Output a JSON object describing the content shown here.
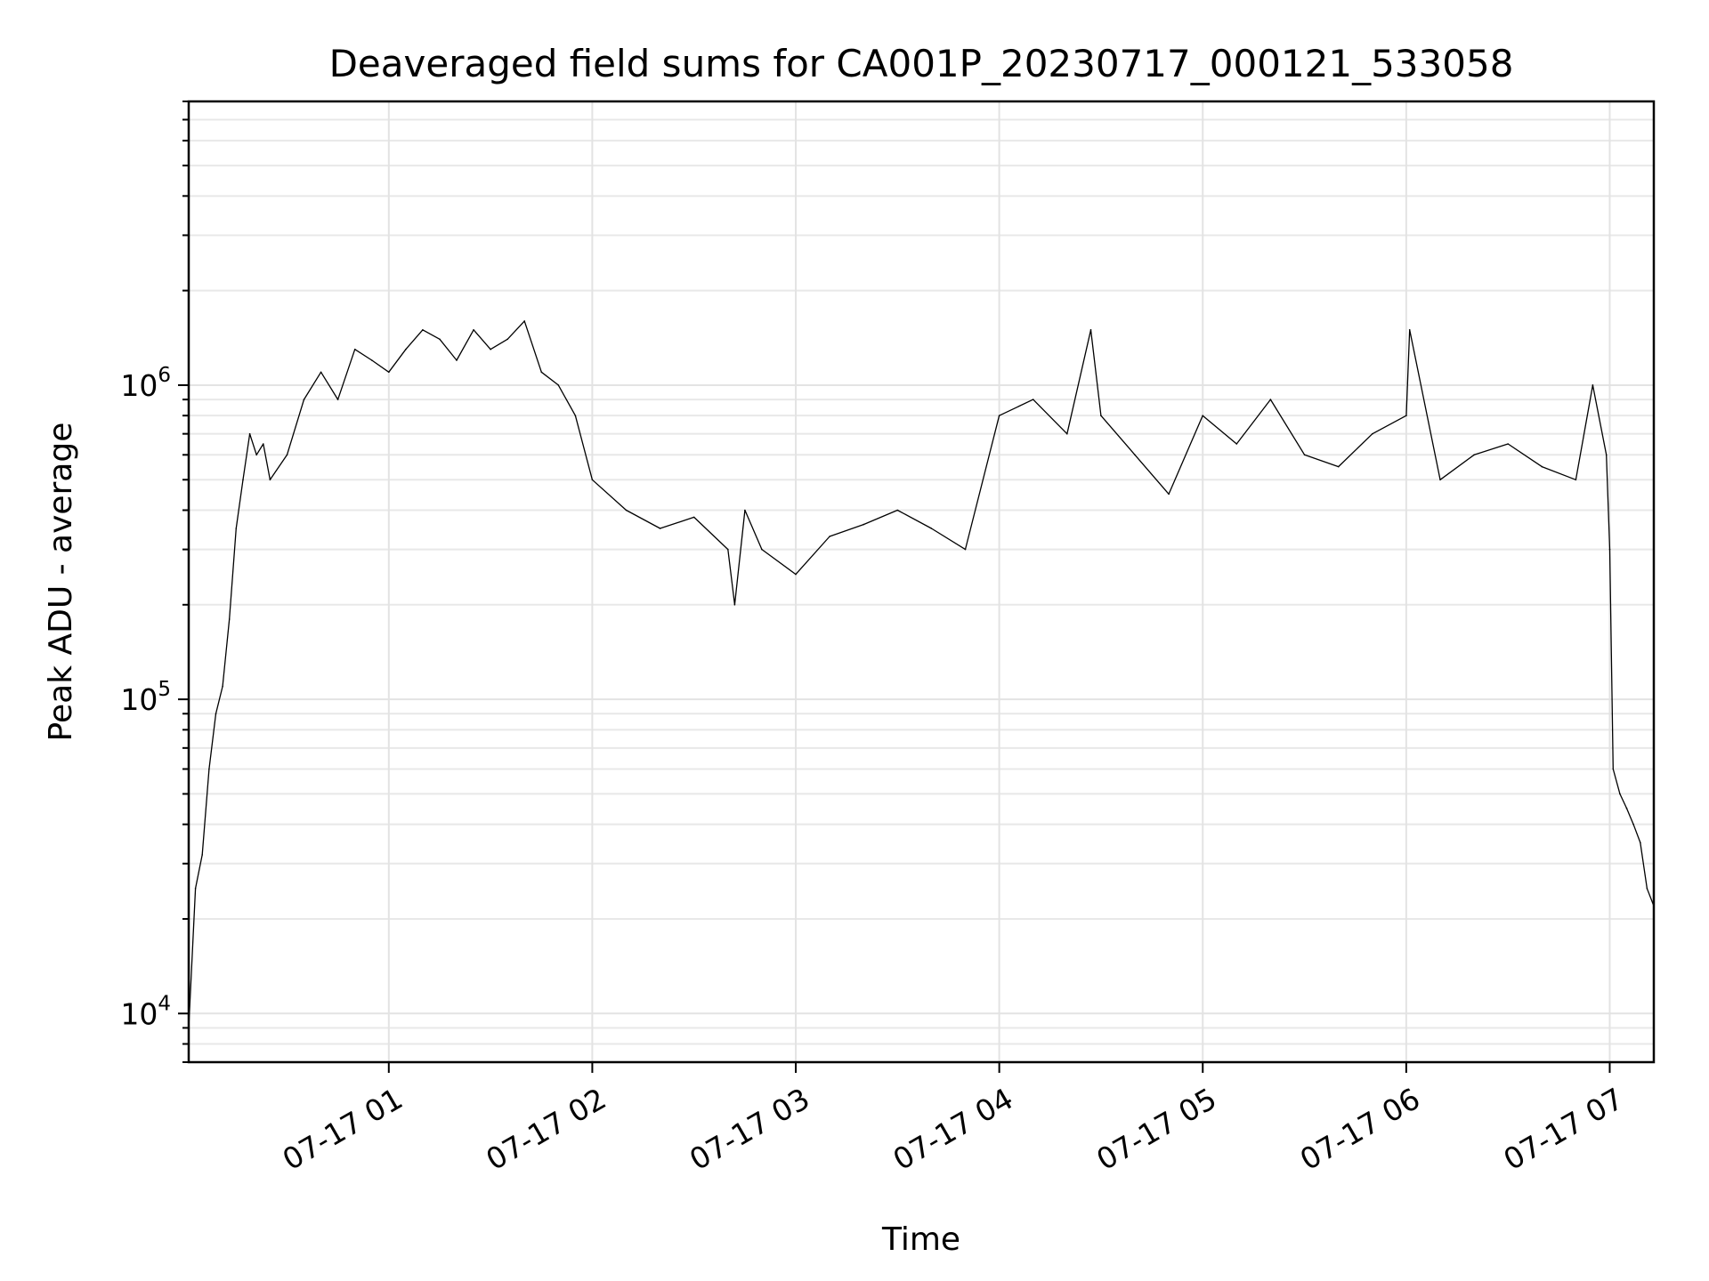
{
  "chart_data": {
    "type": "line",
    "title": "Deaveraged field sums for CA001P_20230717_000121_533058",
    "xlabel": "Time",
    "ylabel": "Peak ADU - average",
    "yscale": "log",
    "ylim": [
      7000,
      8000000
    ],
    "xlim": [
      "2023-07-17 00:01",
      "2023-07-17 07:13"
    ],
    "grid": true,
    "x_ticks": [
      {
        "t": "2023-07-17 01:00",
        "label": "07-17 01"
      },
      {
        "t": "2023-07-17 02:00",
        "label": "07-17 02"
      },
      {
        "t": "2023-07-17 03:00",
        "label": "07-17 03"
      },
      {
        "t": "2023-07-17 04:00",
        "label": "07-17 04"
      },
      {
        "t": "2023-07-17 05:00",
        "label": "07-17 05"
      },
      {
        "t": "2023-07-17 06:00",
        "label": "07-17 06"
      },
      {
        "t": "2023-07-17 07:00",
        "label": "07-17 07"
      }
    ],
    "y_ticks": [
      {
        "value": 10000,
        "base": "10",
        "exp": "4"
      },
      {
        "value": 100000,
        "base": "10",
        "exp": "5"
      },
      {
        "value": 1000000,
        "base": "10",
        "exp": "6"
      }
    ],
    "series": [
      {
        "color": "#000000",
        "x": [
          "00:01",
          "00:03",
          "00:05",
          "00:07",
          "00:09",
          "00:11",
          "00:13",
          "00:15",
          "00:17",
          "00:19",
          "00:21",
          "00:23",
          "00:25",
          "00:30",
          "00:35",
          "00:40",
          "00:45",
          "00:50",
          "00:55",
          "01:00",
          "01:05",
          "01:10",
          "01:15",
          "01:20",
          "01:25",
          "01:30",
          "01:35",
          "01:40",
          "01:45",
          "01:50",
          "01:55",
          "02:00",
          "02:10",
          "02:20",
          "02:30",
          "02:40",
          "02:42",
          "02:45",
          "02:50",
          "03:00",
          "03:10",
          "03:20",
          "03:30",
          "03:40",
          "03:50",
          "04:00",
          "04:10",
          "04:20",
          "04:27",
          "04:30",
          "04:40",
          "04:50",
          "05:00",
          "05:10",
          "05:20",
          "05:30",
          "05:40",
          "05:50",
          "06:00",
          "06:01",
          "06:10",
          "06:20",
          "06:30",
          "06:40",
          "06:50",
          "06:55",
          "06:59",
          "07:00",
          "07:01",
          "07:03",
          "07:05",
          "07:07",
          "07:09",
          "07:11",
          "07:13"
        ],
        "y": [
          9000,
          25000,
          32000,
          60000,
          90000,
          110000,
          180000,
          350000,
          500000,
          700000,
          600000,
          650000,
          500000,
          600000,
          900000,
          1100000,
          900000,
          1300000,
          1200000,
          1100000,
          1300000,
          1500000,
          1400000,
          1200000,
          1500000,
          1300000,
          1400000,
          1600000,
          1100000,
          1000000,
          800000,
          500000,
          400000,
          350000,
          380000,
          300000,
          200000,
          400000,
          300000,
          250000,
          330000,
          360000,
          400000,
          350000,
          300000,
          800000,
          900000,
          700000,
          1500000,
          800000,
          600000,
          450000,
          800000,
          650000,
          900000,
          600000,
          550000,
          700000,
          800000,
          1500000,
          500000,
          600000,
          650000,
          550000,
          500000,
          1000000,
          600000,
          300000,
          60000,
          50000,
          45000,
          40000,
          35000,
          25000,
          22000
        ]
      }
    ]
  }
}
